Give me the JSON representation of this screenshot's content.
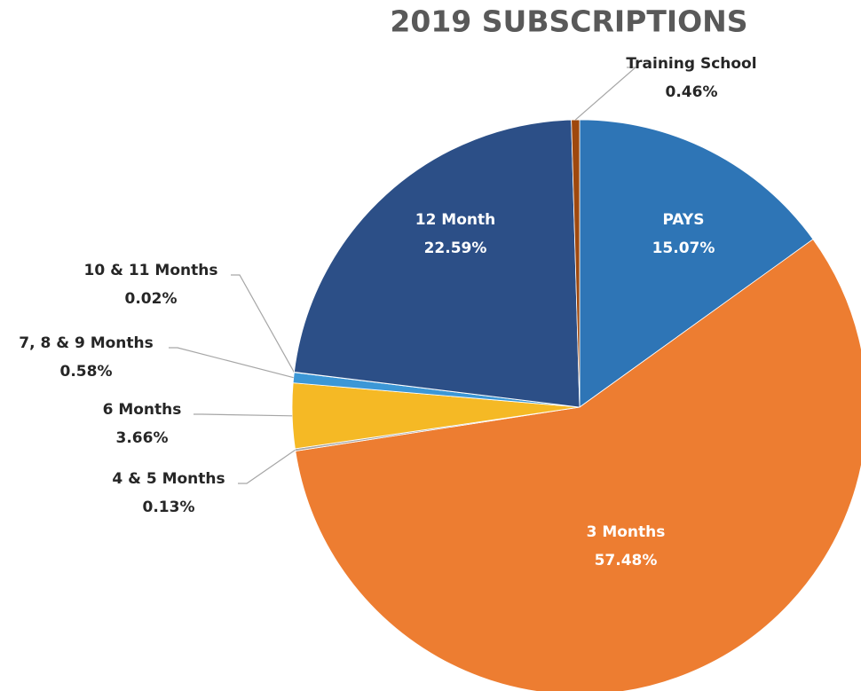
{
  "chart_data": {
    "type": "pie",
    "title": "2019 SUBSCRIPTIONS",
    "categories": [
      "PAYS",
      "3 Months",
      "4 & 5 Months",
      "6 Months",
      "7, 8 & 9 Months",
      "10 & 11 Months",
      "12 Month",
      "Training School"
    ],
    "values": [
      15.07,
      57.48,
      0.13,
      3.66,
      0.58,
      0.02,
      22.59,
      0.46
    ],
    "value_labels": [
      "15.07%",
      "57.48%",
      "0.13%",
      "3.66%",
      "0.58%",
      "0.02%",
      "22.59%",
      "0.46%"
    ],
    "colors": [
      "#2e75b6",
      "#ed7d31",
      "#a5a5a5",
      "#f5b925",
      "#3c97d6",
      "#264478",
      "#2c4f87",
      "#9e480e"
    ]
  }
}
